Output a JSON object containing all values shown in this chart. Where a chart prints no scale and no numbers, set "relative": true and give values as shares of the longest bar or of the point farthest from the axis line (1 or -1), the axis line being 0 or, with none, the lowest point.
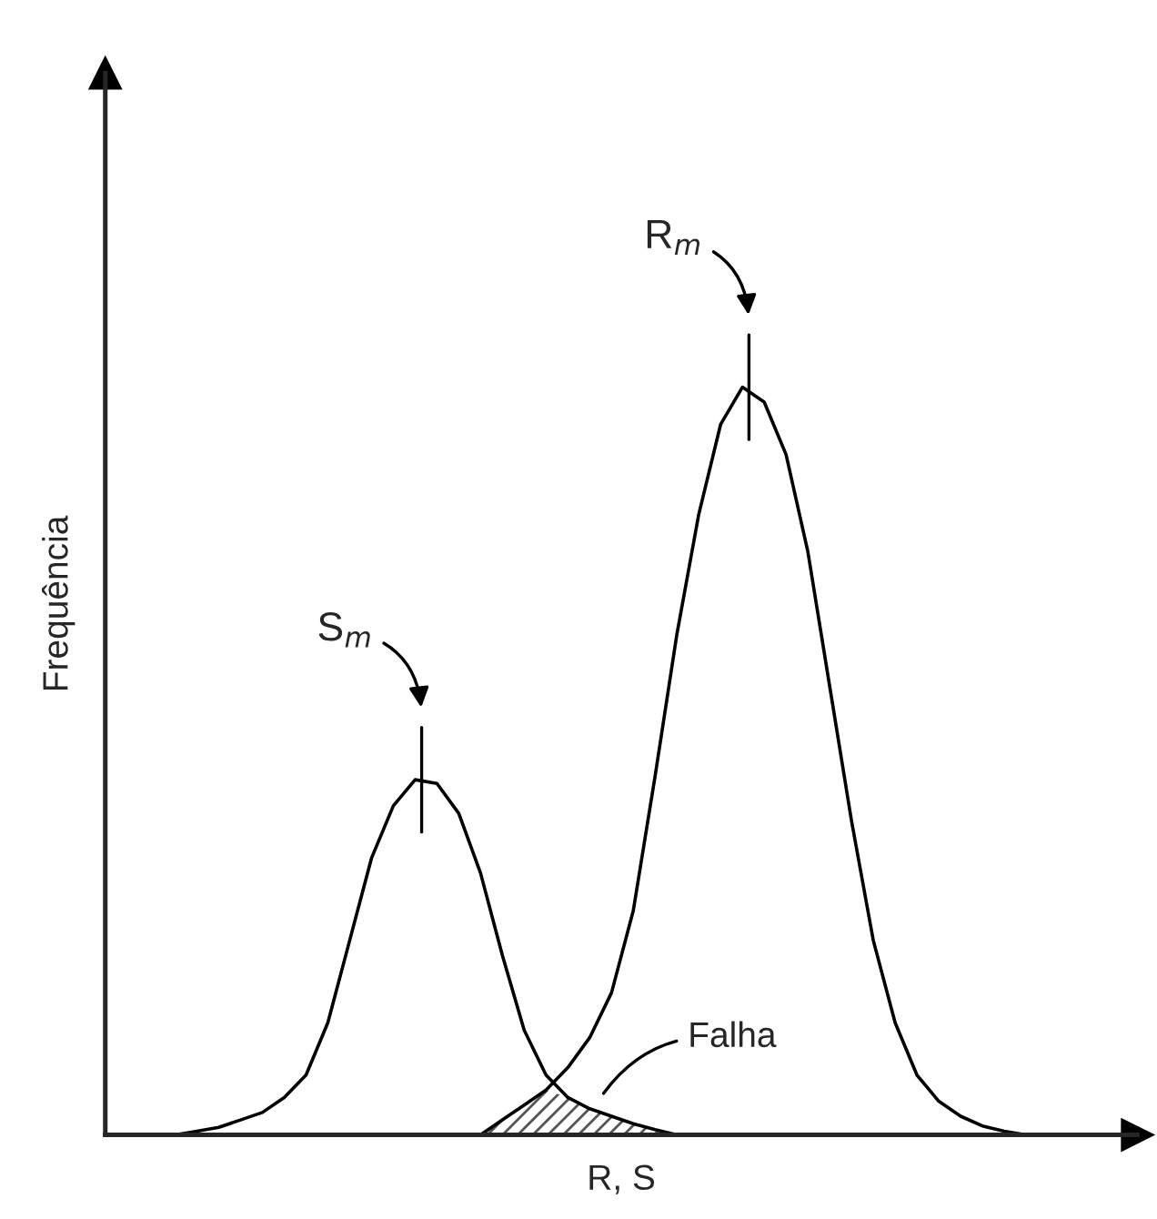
{
  "chart_data": {
    "type": "line",
    "relative": true,
    "xlabel": "R, S",
    "ylabel": "Frequência",
    "categories": [
      null,
      null,
      null,
      null,
      null,
      null,
      null,
      null,
      null,
      null,
      null,
      null,
      null,
      null,
      null,
      null,
      null,
      null,
      null,
      null,
      null,
      null,
      null,
      null,
      null,
      null,
      null,
      null,
      null,
      null,
      null,
      null,
      null,
      null,
      null,
      null,
      null,
      null,
      null,
      null,
      null,
      null,
      null,
      null,
      null,
      null,
      null,
      null
    ],
    "series": [
      {
        "color": "#000000",
        "values": [
          null,
          null,
          null,
          0,
          0.005,
          0.01,
          0.02,
          0.03,
          0.05,
          0.08,
          0.15,
          0.26,
          0.37,
          0.44,
          0.475,
          0.47,
          0.43,
          0.35,
          0.24,
          0.14,
          0.08,
          0.05,
          0.035,
          0.025,
          0.015,
          0.007,
          0,
          null,
          null,
          null,
          null,
          null,
          null,
          null,
          null,
          null,
          null,
          null,
          null,
          null,
          null,
          null,
          null,
          null,
          null,
          null,
          null,
          null
        ]
      },
      {
        "color": "#000000",
        "values": [
          null,
          null,
          null,
          null,
          null,
          null,
          null,
          null,
          null,
          null,
          null,
          null,
          null,
          null,
          null,
          null,
          null,
          0,
          0.02,
          0.04,
          0.06,
          0.09,
          0.13,
          0.19,
          0.3,
          0.48,
          0.67,
          0.83,
          0.95,
          1,
          0.98,
          0.91,
          0.78,
          0.6,
          0.42,
          0.26,
          0.15,
          0.08,
          0.045,
          0.025,
          0.012,
          0.005,
          0,
          null,
          null,
          null,
          null,
          null
        ]
      }
    ],
    "annotations": [
      "S$_{m}$",
      "R$_{m}$",
      "Falha"
    ],
    "grid": false
  }
}
